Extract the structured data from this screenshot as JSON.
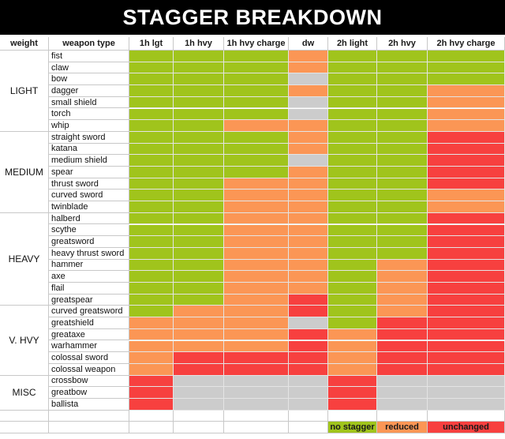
{
  "title": "STAGGER BREAKDOWN",
  "colors": {
    "n": "#a0c41c",
    "r": "#fb9655",
    "u": "#f7403f",
    "g": "#cccccc"
  },
  "legend": [
    {
      "key": "n",
      "label": "no stagger"
    },
    {
      "key": "r",
      "label": "reduced"
    },
    {
      "key": "u",
      "label": "unchanged"
    }
  ],
  "chart_data": {
    "type": "heatmap",
    "title": "STAGGER BREAKDOWN",
    "row_header": "weight",
    "weapon_header": "weapon type",
    "columns": [
      "1h lgt",
      "1h hvy",
      "1h hvy charge",
      "dw",
      "2h light",
      "2h hvy",
      "2h hvy charge"
    ],
    "groups": [
      {
        "name": "LIGHT",
        "rows": [
          {
            "weapon": "fist",
            "cells": [
              "n",
              "n",
              "n",
              "r",
              "n",
              "n",
              "n"
            ]
          },
          {
            "weapon": "claw",
            "cells": [
              "n",
              "n",
              "n",
              "r",
              "n",
              "n",
              "n"
            ]
          },
          {
            "weapon": "bow",
            "cells": [
              "n",
              "n",
              "n",
              "g",
              "n",
              "n",
              "n"
            ]
          },
          {
            "weapon": "dagger",
            "cells": [
              "n",
              "n",
              "n",
              "r",
              "n",
              "n",
              "r"
            ]
          },
          {
            "weapon": "small shield",
            "cells": [
              "n",
              "n",
              "n",
              "g",
              "n",
              "n",
              "r"
            ]
          },
          {
            "weapon": "torch",
            "cells": [
              "n",
              "n",
              "n",
              "g",
              "n",
              "n",
              "r"
            ]
          },
          {
            "weapon": "whip",
            "cells": [
              "n",
              "n",
              "r",
              "r",
              "n",
              "n",
              "r"
            ]
          }
        ]
      },
      {
        "name": "MEDIUM",
        "rows": [
          {
            "weapon": "straight sword",
            "cells": [
              "n",
              "n",
              "n",
              "r",
              "n",
              "n",
              "u"
            ]
          },
          {
            "weapon": "katana",
            "cells": [
              "n",
              "n",
              "n",
              "r",
              "n",
              "n",
              "u"
            ]
          },
          {
            "weapon": "medium shield",
            "cells": [
              "n",
              "n",
              "n",
              "g",
              "n",
              "n",
              "u"
            ]
          },
          {
            "weapon": "spear",
            "cells": [
              "n",
              "n",
              "n",
              "r",
              "n",
              "n",
              "u"
            ]
          },
          {
            "weapon": "thrust sword",
            "cells": [
              "n",
              "n",
              "r",
              "r",
              "n",
              "n",
              "u"
            ]
          },
          {
            "weapon": "curved sword",
            "cells": [
              "n",
              "n",
              "r",
              "r",
              "n",
              "n",
              "r"
            ]
          },
          {
            "weapon": "twinblade",
            "cells": [
              "n",
              "n",
              "r",
              "r",
              "n",
              "n",
              "r"
            ]
          }
        ]
      },
      {
        "name": "HEAVY",
        "rows": [
          {
            "weapon": "halberd",
            "cells": [
              "n",
              "n",
              "r",
              "r",
              "n",
              "n",
              "u"
            ]
          },
          {
            "weapon": "scythe",
            "cells": [
              "n",
              "n",
              "r",
              "r",
              "n",
              "n",
              "u"
            ]
          },
          {
            "weapon": "greatsword",
            "cells": [
              "n",
              "n",
              "r",
              "r",
              "n",
              "n",
              "u"
            ]
          },
          {
            "weapon": "heavy thrust sword",
            "cells": [
              "n",
              "n",
              "r",
              "r",
              "n",
              "n",
              "u"
            ]
          },
          {
            "weapon": "hammer",
            "cells": [
              "n",
              "n",
              "r",
              "r",
              "n",
              "r",
              "u"
            ]
          },
          {
            "weapon": "axe",
            "cells": [
              "n",
              "n",
              "r",
              "r",
              "n",
              "r",
              "u"
            ]
          },
          {
            "weapon": "flail",
            "cells": [
              "n",
              "n",
              "r",
              "r",
              "n",
              "r",
              "u"
            ]
          },
          {
            "weapon": "greatspear",
            "cells": [
              "n",
              "n",
              "r",
              "u",
              "n",
              "r",
              "u"
            ]
          }
        ]
      },
      {
        "name": "V. HVY",
        "rows": [
          {
            "weapon": "curved greatsword",
            "cells": [
              "n",
              "r",
              "r",
              "u",
              "n",
              "r",
              "u"
            ]
          },
          {
            "weapon": "greatshield",
            "cells": [
              "r",
              "r",
              "r",
              "g",
              "n",
              "u",
              "u"
            ]
          },
          {
            "weapon": "greataxe",
            "cells": [
              "r",
              "r",
              "r",
              "u",
              "r",
              "u",
              "u"
            ]
          },
          {
            "weapon": "warhammer",
            "cells": [
              "r",
              "r",
              "r",
              "u",
              "r",
              "u",
              "u"
            ]
          },
          {
            "weapon": "colossal sword",
            "cells": [
              "r",
              "u",
              "u",
              "u",
              "r",
              "u",
              "u"
            ]
          },
          {
            "weapon": "colossal weapon",
            "cells": [
              "r",
              "u",
              "u",
              "u",
              "r",
              "u",
              "u"
            ]
          }
        ]
      },
      {
        "name": "MISC",
        "rows": [
          {
            "weapon": "crossbow",
            "cells": [
              "u",
              "g",
              "g",
              "g",
              "u",
              "g",
              "g"
            ]
          },
          {
            "weapon": "greatbow",
            "cells": [
              "u",
              "g",
              "g",
              "g",
              "u",
              "g",
              "g"
            ]
          },
          {
            "weapon": "ballista",
            "cells": [
              "u",
              "g",
              "g",
              "g",
              "u",
              "g",
              "g"
            ]
          }
        ]
      }
    ]
  }
}
